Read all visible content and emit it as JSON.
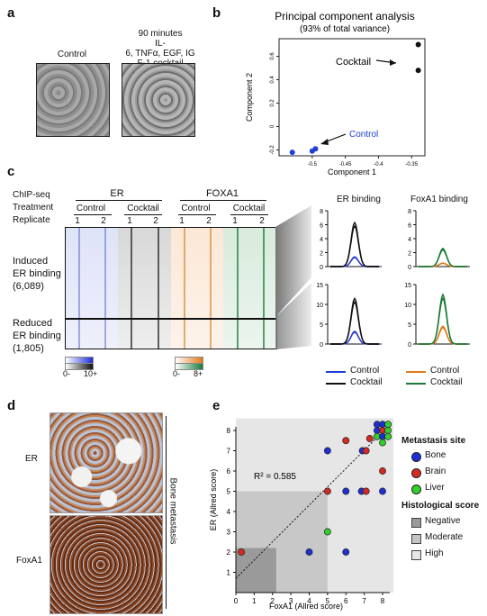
{
  "panels": {
    "a": "a",
    "b": "b",
    "c": "c",
    "d": "d",
    "e": "e"
  },
  "panel_a": {
    "control_label": "Control",
    "cocktail_label_lines": [
      "90 minutes",
      "IL-",
      "6, TNFα, EGF, IG",
      "F-1 cocktail"
    ]
  },
  "panel_b": {
    "chart_data": {
      "type": "scatter",
      "title": "Principal component analysis",
      "subtitle": "(93% of total variance)",
      "xlabel": "Component 1",
      "ylabel": "Component 2",
      "xlim": [
        -0.55,
        -0.33
      ],
      "ylim": [
        -0.25,
        0.75
      ],
      "xticks": [
        "-0.5",
        "-0.45",
        "-0.4",
        "-0.35"
      ],
      "yticks": [
        "-0.2",
        "0",
        "0.2",
        "0.4",
        "0.6"
      ],
      "series": [
        {
          "name": "Control",
          "color": "#1f3fd6",
          "x": [
            -0.53,
            -0.5,
            -0.495
          ],
          "y": [
            -0.22,
            -0.21,
            -0.19
          ]
        },
        {
          "name": "Cocktail",
          "color": "#111111",
          "x": [
            -0.34,
            -0.34
          ],
          "y": [
            0.7,
            0.48
          ]
        }
      ],
      "annotations": [
        "Cocktail",
        "Control"
      ]
    }
  },
  "panel_c": {
    "row_labels": [
      "ChIP-seq",
      "Treatment",
      "Replicate"
    ],
    "groups": [
      "ER",
      "FOXA1"
    ],
    "treatments": [
      "Control",
      "Cocktail",
      "Control",
      "Cocktail"
    ],
    "replicates": [
      "1",
      "2",
      "1",
      "2",
      "1",
      "2",
      "1",
      "2"
    ],
    "induced_label_lines": [
      "Induced",
      "ER binding",
      "(6,089)"
    ],
    "reduced_label_lines": [
      "Reduced",
      "ER binding",
      "(1,805)"
    ],
    "scale_left": {
      "min": "0-",
      "max": "10+"
    },
    "scale_right": {
      "min": "0-",
      "max": "8+"
    },
    "colors": {
      "er_control": "#3344cc",
      "er_cocktail": "#111111",
      "fox_control": "#e07b1a",
      "fox_cocktail": "#1a7a3a"
    },
    "profile_titles": [
      "ER binding",
      "FoxA1 binding"
    ],
    "profile_top_yticks": [
      "0",
      "2",
      "4",
      "6",
      "8"
    ],
    "profile_bottom_yticks": [
      "0",
      "5",
      "10",
      "15"
    ],
    "chart_data": [
      {
        "type": "line",
        "title": "ER binding",
        "panel": "induced",
        "ylim": [
          0,
          8
        ],
        "series": [
          {
            "name": "Control",
            "peak": 1.4
          },
          {
            "name": "Cocktail",
            "peak": 6.3
          }
        ]
      },
      {
        "type": "line",
        "title": "FoxA1 binding",
        "panel": "induced",
        "ylim": [
          0,
          8
        ],
        "series": [
          {
            "name": "Control",
            "peak": 0.5
          },
          {
            "name": "Cocktail",
            "peak": 2.6
          }
        ]
      },
      {
        "type": "line",
        "title": "ER binding",
        "panel": "reduced",
        "ylim": [
          0,
          15
        ],
        "series": [
          {
            "name": "Control",
            "peak": 3.2
          },
          {
            "name": "Cocktail",
            "peak": 11.5
          }
        ]
      },
      {
        "type": "line",
        "title": "FoxA1 binding",
        "panel": "reduced",
        "ylim": [
          0,
          15
        ],
        "series": [
          {
            "name": "Control",
            "peak": 4.5
          },
          {
            "name": "Cocktail",
            "peak": 12.5
          }
        ]
      }
    ],
    "legend": [
      {
        "label": "Control",
        "color": "#1f3fd6"
      },
      {
        "label": "Cocktail",
        "color": "#111111"
      },
      {
        "label": "Control",
        "color": "#e07b1a"
      },
      {
        "label": "Cocktail",
        "color": "#1a7a3a"
      }
    ]
  },
  "panel_d": {
    "er_label": "ER",
    "foxa1_label": "FoxA1",
    "side_label": "Bone metastasis"
  },
  "panel_e": {
    "chart_data": {
      "type": "scatter",
      "xlabel": "FoxA1 (Allred score)",
      "ylabel": "ER (Allred score)",
      "xlim": [
        0,
        8
      ],
      "ylim": [
        0,
        8
      ],
      "xticks": [
        "0",
        "1",
        "2",
        "3",
        "4",
        "5",
        "6",
        "7",
        "8"
      ],
      "yticks": [
        "1",
        "2",
        "3",
        "4",
        "5",
        "6",
        "7",
        "8"
      ],
      "annotation": "R² = 0.585",
      "points": [
        {
          "x": 0.3,
          "y": 2,
          "site": "Brain"
        },
        {
          "x": 4,
          "y": 2,
          "site": "Bone"
        },
        {
          "x": 6,
          "y": 2,
          "site": "Bone"
        },
        {
          "x": 5,
          "y": 3,
          "site": "Liver"
        },
        {
          "x": 5,
          "y": 5,
          "site": "Brain"
        },
        {
          "x": 6,
          "y": 5,
          "site": "Bone"
        },
        {
          "x": 6.85,
          "y": 5,
          "site": "Bone"
        },
        {
          "x": 7.1,
          "y": 5,
          "site": "Brain"
        },
        {
          "x": 8,
          "y": 5,
          "site": "Bone"
        },
        {
          "x": 5,
          "y": 7,
          "site": "Bone"
        },
        {
          "x": 6.9,
          "y": 7,
          "site": "Bone"
        },
        {
          "x": 7.1,
          "y": 7,
          "site": "Brain"
        },
        {
          "x": 8,
          "y": 6,
          "site": "Brain"
        },
        {
          "x": 6,
          "y": 7.5,
          "site": "Brain"
        },
        {
          "x": 7.3,
          "y": 7.6,
          "site": "Brain"
        },
        {
          "x": 7.7,
          "y": 8.3,
          "site": "Bone"
        },
        {
          "x": 8.0,
          "y": 8.3,
          "site": "Bone"
        },
        {
          "x": 8.3,
          "y": 8.3,
          "site": "Liver"
        },
        {
          "x": 7.7,
          "y": 8.0,
          "site": "Bone"
        },
        {
          "x": 8.0,
          "y": 8.0,
          "site": "Brain"
        },
        {
          "x": 8.3,
          "y": 8.0,
          "site": "Liver"
        },
        {
          "x": 7.7,
          "y": 7.7,
          "site": "Liver"
        },
        {
          "x": 8.0,
          "y": 7.7,
          "site": "Bone"
        },
        {
          "x": 8.3,
          "y": 7.7,
          "site": "Liver"
        },
        {
          "x": 8.0,
          "y": 7.4,
          "site": "Liver"
        }
      ],
      "legend_title": "Metastasis site",
      "legend": [
        {
          "label": "Bone",
          "color": "#1f2fd6"
        },
        {
          "label": "Brain",
          "color": "#d42a22"
        },
        {
          "label": "Liver",
          "color": "#2fd12a"
        }
      ],
      "hist_title": "Histological score",
      "hist_legend": [
        {
          "label": "Negative",
          "color": "#9a9a9a"
        },
        {
          "label": "Moderate",
          "color": "#c4c4c4"
        },
        {
          "label": "High",
          "color": "#e6e6e6"
        }
      ]
    }
  }
}
